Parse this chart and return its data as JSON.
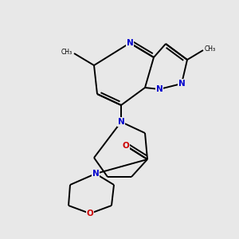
{
  "background_color": "#e8e8e8",
  "bond_color": "#000000",
  "atom_colors": {
    "N": "#0000cd",
    "O": "#cc0000",
    "C": "#000000"
  },
  "figsize": [
    3.0,
    3.0
  ],
  "dpi": 100,
  "line_width": 1.4,
  "font_size": 7.5
}
